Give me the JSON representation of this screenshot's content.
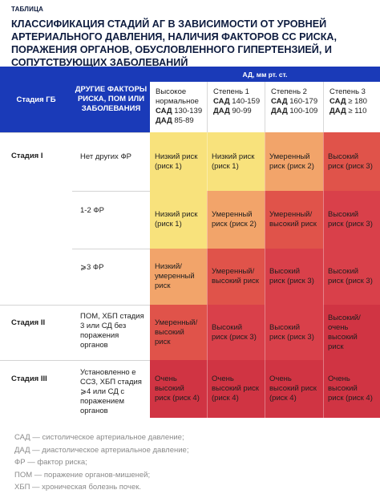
{
  "label": "ТАБЛИЦА",
  "title": "КЛАССИФИКАЦИЯ СТАДИЙ АГ В ЗАВИСИМОСТИ ОТ УРОВНЕЙ АРТЕРИАЛЬНОГО ДАВЛЕНИЯ, НАЛИЧИЯ ФАКТОРОВ СС РИСКА, ПОРАЖЕНИЯ ОРГАНОВ, ОБУСЛОВЛЕННОГО ГИПЕРТЕНЗИЕЙ, И СОПУТСТВУЮЩИХ ЗАБОЛЕВАНИЙ",
  "header": {
    "stage": "Стадия ГБ",
    "other": "ДРУГИЕ ФАКТОРЫ РИСКА, ПОМ ИЛИ ЗАБОЛЕВАНИЯ",
    "ad": "АД, мм рт. ст."
  },
  "columns": [
    {
      "line1": "Высокое",
      "line2": "нормальное",
      "sad_label": "САД",
      "sad_val": "130-139",
      "dad_label": "ДАД",
      "dad_val": "85-89"
    },
    {
      "line1": "Степень 1",
      "line2": "",
      "sad_label": "САД",
      "sad_val": "140-159",
      "dad_label": "ДАД",
      "dad_val": "90-99"
    },
    {
      "line1": "Степень 2",
      "line2": "",
      "sad_label": "САД",
      "sad_val": "160-179",
      "dad_label": "ДАД",
      "dad_val": "100-109"
    },
    {
      "line1": "Степень 3",
      "line2": "",
      "sad_label": "САД",
      "sad_val": "≥ 180",
      "dad_label": "ДАД",
      "dad_val": "≥ 110"
    }
  ],
  "stages": [
    "Стадия I",
    "Стадия II",
    "Стадия III"
  ],
  "rows": [
    {
      "other": "Нет других ФР",
      "cells": [
        "Низкий риск (риск 1)",
        "Низкий риск (риск 1)",
        "Умеренный риск (риск 2)",
        "Высокий риск (риск 3)"
      ]
    },
    {
      "other": "1-2 ФР",
      "cells": [
        "Низкий риск (риск 1)",
        "Умеренный риск (риск 2)",
        "Умеренный/ высокий риск",
        "Высокий риск (риск 3)"
      ]
    },
    {
      "other": "⩾3 ФР",
      "cells": [
        "Низкий/ умеренный риск",
        "Умеренный/ высокий риск",
        "Высокий риск (риск 3)",
        "Высокий риск (риск 3)"
      ]
    },
    {
      "other": "ПОМ, ХБП стадия 3 или СД без поражения органов",
      "cells": [
        "Умеренный/ высокий риск",
        "Высокий риск (риск 3)",
        "Высокий риск (риск 3)",
        "Высокий/ очень высокий риск"
      ]
    },
    {
      "other": "Установленно е ССЗ, ХБП стадия ⩾4 или СД с поражением органов",
      "cells": [
        "Очень высокий риск (риск 4)",
        "Очень высокий риск (риск 4)",
        "Очень высокий риск (риск 4)",
        "Очень высокий риск (риск 4)"
      ]
    }
  ],
  "colors": {
    "header_blue": "#1a3ab8",
    "yellow": "#f8e27c",
    "orange": "#f2a46a",
    "red_light": "#e05a4e",
    "red": "#d9404a",
    "red_dark": "#d03443"
  },
  "legend": [
    "САД — систолическое артериальное давление;",
    "ДАД — диастолическое артериальное давление;",
    "ФР — фактор риска;",
    "ПОМ — поражение органов-мишеней;",
    "ХБП — хроническая болезнь почек."
  ]
}
